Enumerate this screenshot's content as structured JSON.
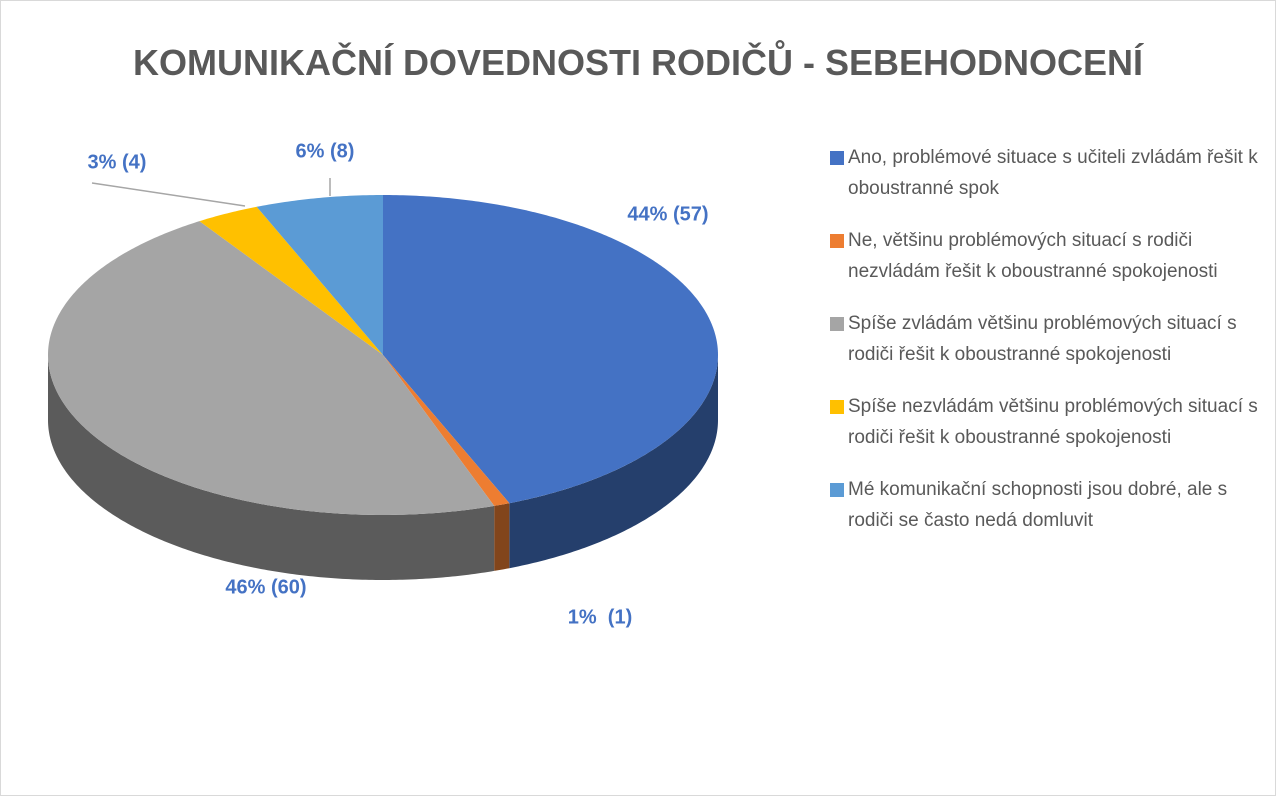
{
  "chart_data": {
    "type": "pie",
    "title": "KOMUNIKAČNÍ DOVEDNOSTI RODIČŮ - SEBEHODNOCENÍ",
    "categories": [
      "Ano, problémové situace s učiteli zvládám řešit k oboustranné spok",
      "Ne, většinu problémových situací s rodiči nezvládám řešit k oboustranné spokojenosti",
      "Spíše zvládám většinu problémových situací s rodiči řešit k oboustranné spokojenosti",
      "Spíše nezvládám většinu problémových situací s rodiči řešit k oboustranné spokojenosti",
      "Mé komunikační schopnosti jsou dobré, ale s rodiči se často nedá domluvit"
    ],
    "values": [
      57,
      1,
      60,
      4,
      8
    ],
    "value_labels": [
      "44% (57)",
      "1%  (1)",
      "46% (60)",
      "3% (4)",
      "6% (8)"
    ],
    "colors": [
      "#4472c4",
      "#ed7d31",
      "#a5a5a5",
      "#ffc000",
      "#5b9bd5"
    ],
    "legend": "right"
  }
}
